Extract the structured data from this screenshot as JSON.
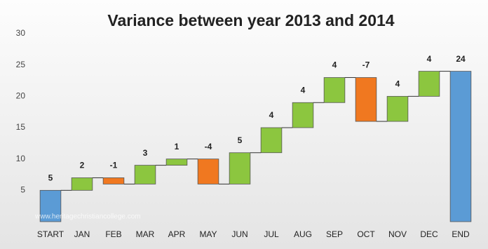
{
  "chart_data": {
    "type": "waterfall",
    "title": "Variance between year 2013 and 2014",
    "categories": [
      "START",
      "JAN",
      "FEB",
      "MAR",
      "APR",
      "MAY",
      "JUN",
      "JUL",
      "AUG",
      "SEP",
      "OCT",
      "NOV",
      "DEC",
      "END"
    ],
    "values": [
      5,
      2,
      -1,
      3,
      1,
      -4,
      5,
      4,
      4,
      4,
      -7,
      4,
      4,
      24
    ],
    "colors": {
      "total": "#5b9bd5",
      "increase": "#8cc63f",
      "decrease": "#f07820"
    },
    "ylim": [
      0,
      30
    ],
    "yticks": [
      5,
      10,
      15,
      20,
      25,
      30
    ],
    "watermark": "www.heritagechristiancollege.com"
  }
}
